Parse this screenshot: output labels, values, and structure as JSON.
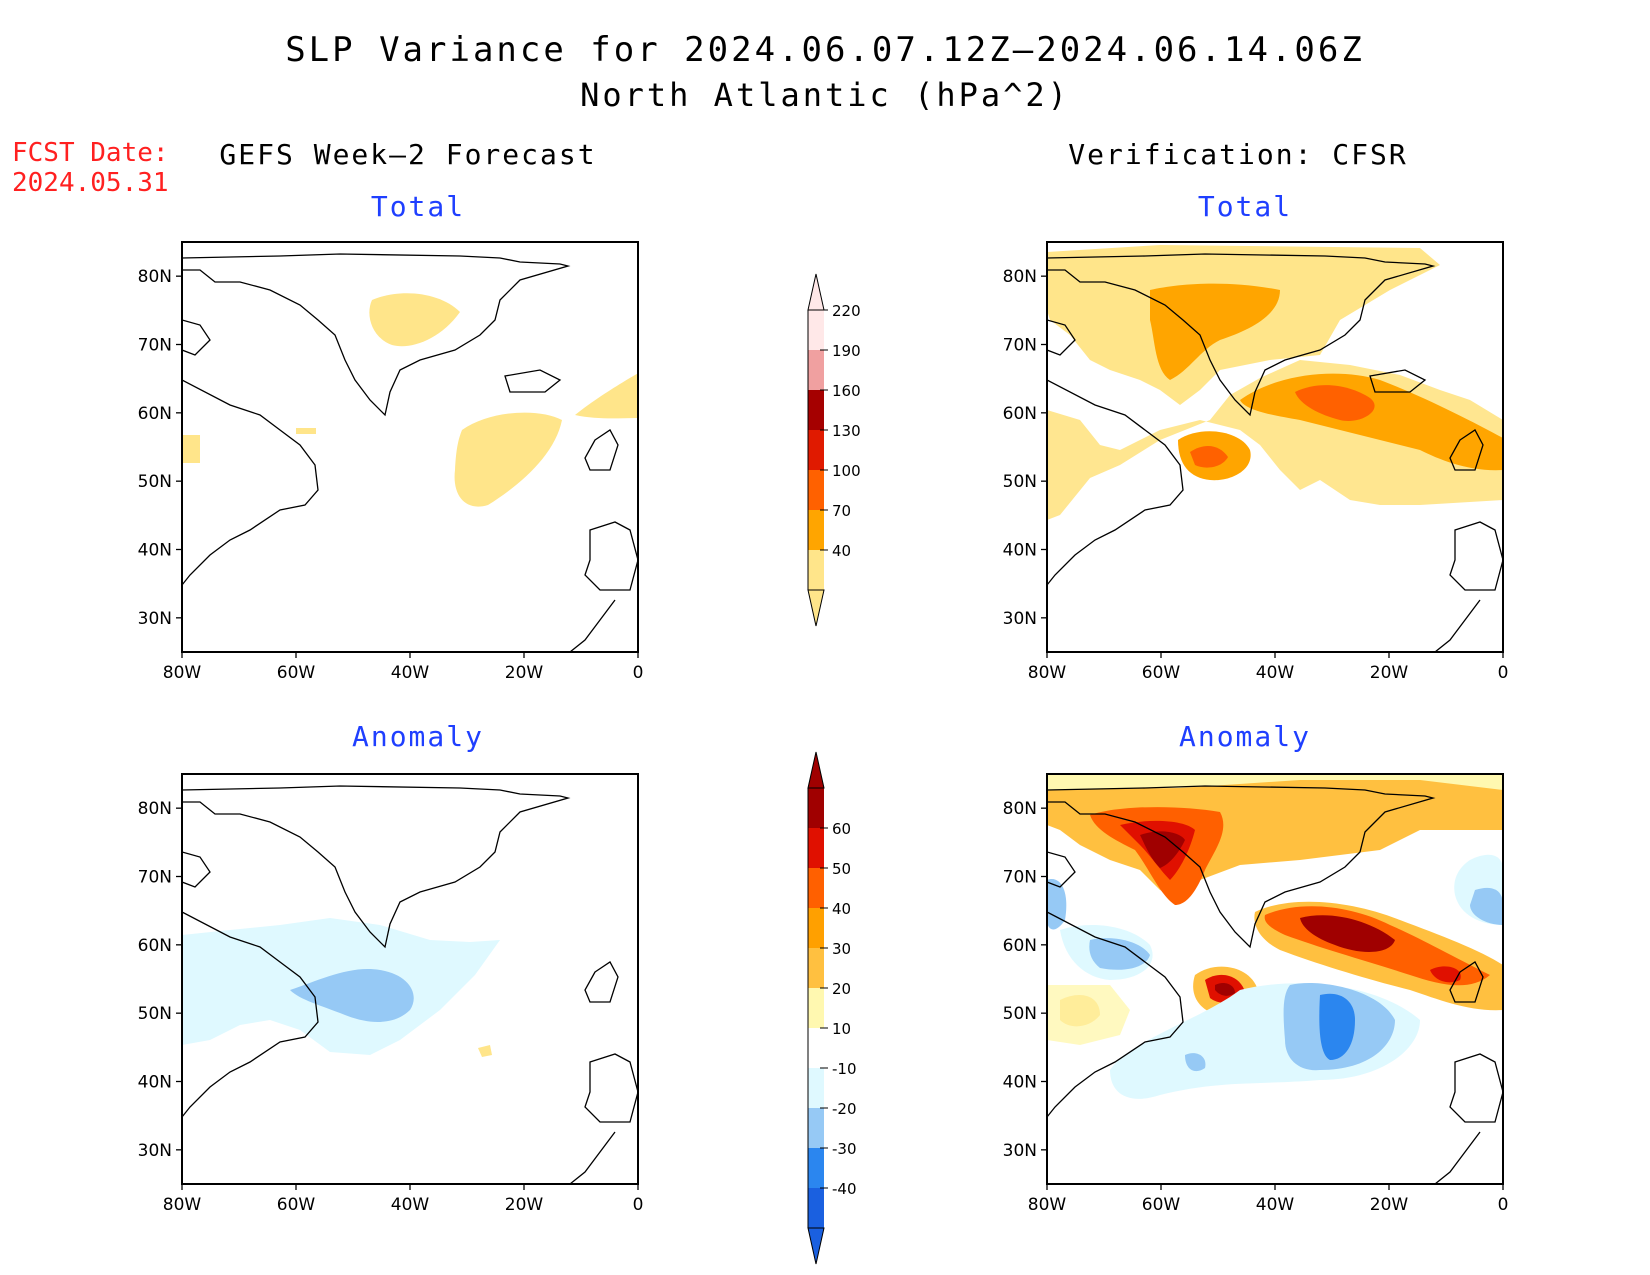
{
  "title": "SLP Variance for 2024.06.07.12Z–2024.06.14.06Z",
  "subtitle": "North Atlantic (hPa^2)",
  "fcst_date_label": "FCST Date:",
  "fcst_date": "2024.05.31",
  "columns": {
    "left": "GEFS Week–2 Forecast",
    "right": "Verification: CFSR"
  },
  "rows": {
    "top": "Total",
    "bottom": "Anomaly"
  },
  "axes": {
    "lat_labels": [
      "80N",
      "70N",
      "60N",
      "50N",
      "40N",
      "30N"
    ],
    "lon_labels": [
      "80W",
      "60W",
      "40W",
      "20W",
      "0"
    ],
    "lat_range": [
      25,
      85
    ],
    "lon_range": [
      -80,
      0
    ]
  },
  "colorbars": {
    "total": {
      "levels": [
        "40",
        "70",
        "100",
        "130",
        "160",
        "190",
        "220"
      ],
      "colors": [
        "#ffe58a",
        "#ffa500",
        "#ff6100",
        "#e01a00",
        "#a50000",
        "#f0a0a0",
        "#ffe8e8"
      ]
    },
    "anomaly": {
      "levels": [
        "-40",
        "-30",
        "-20",
        "-10",
        "10",
        "20",
        "30",
        "40",
        "50",
        "60"
      ],
      "colors": [
        "#1a60e0",
        "#2b86ef",
        "#96c9f5",
        "#dff9ff",
        "#ffffff",
        "#fff8b0",
        "#ffc040",
        "#ffa000",
        "#ff6000",
        "#e01000",
        "#a00000"
      ]
    }
  }
}
